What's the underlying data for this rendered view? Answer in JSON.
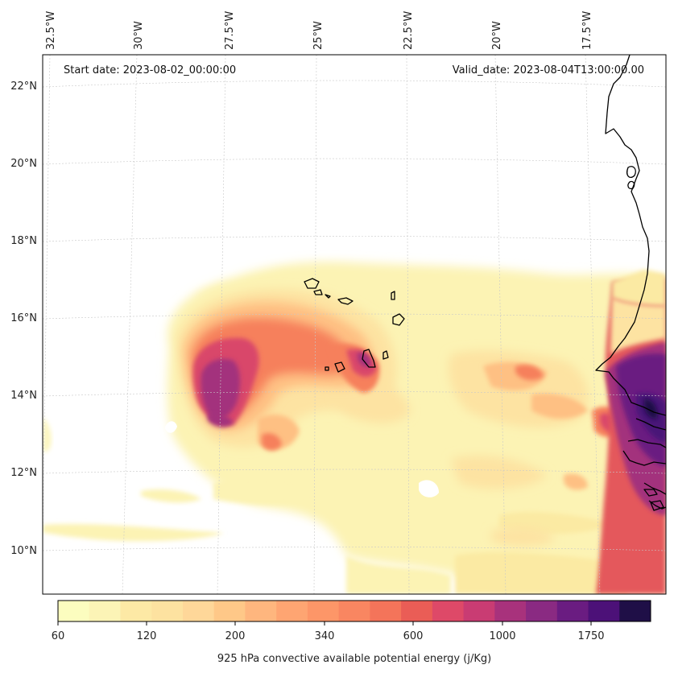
{
  "map": {
    "start_date": "Start date: 2023-08-02_00:00:00",
    "valid_date": "Valid_date: 2023-08-04T13:00:00.00",
    "lon_labels": [
      "32.5°W",
      "30°W",
      "27.5°W",
      "25°W",
      "22.5°W",
      "20°W",
      "17.5°W"
    ],
    "lat_labels": [
      "22°N",
      "20°N",
      "18°N",
      "16°N",
      "14°N",
      "12°N",
      "10°N"
    ]
  },
  "colorbar": {
    "title": "925 hPa convective available potential energy (j/Kg)",
    "tick_labels": [
      "60",
      "120",
      "200",
      "340",
      "600",
      "1000",
      "1750"
    ],
    "colors": [
      "#fcfdbf",
      "#fcf4b6",
      "#fde9a5",
      "#fde2a0",
      "#fed799",
      "#fec888",
      "#feb67e",
      "#fea572",
      "#fd9668",
      "#f98661",
      "#f4745a",
      "#ea5d56",
      "#de4968",
      "#c93c73",
      "#a8327c",
      "#8a2a82",
      "#6a1c81",
      "#4c1178",
      "#1f0f47"
    ]
  }
}
